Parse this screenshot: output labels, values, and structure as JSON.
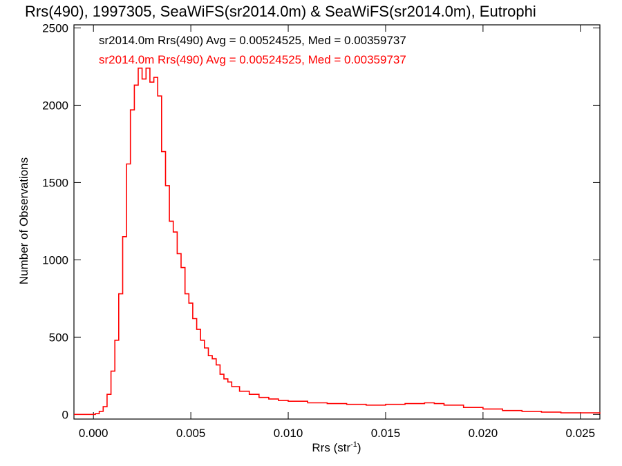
{
  "chart_data": {
    "type": "line",
    "title": "Rrs(490), 1997305, SeaWiFS(sr2014.0m) & SeaWiFS(sr2014.0m), Eutrophi",
    "xlabel": "Rrs (str",
    "xlabel_sup": "-1",
    "xlabel_close": ")",
    "ylabel": "Number of Observations",
    "xlim": [
      -0.001,
      0.026
    ],
    "ylim": [
      -30,
      2520
    ],
    "x_ticks": [
      0.0,
      0.005,
      0.01,
      0.015,
      0.02,
      0.025
    ],
    "x_tick_labels": [
      "0.000",
      "0.005",
      "0.010",
      "0.015",
      "0.020",
      "0.025"
    ],
    "y_ticks": [
      0,
      500,
      1000,
      1500,
      2000,
      2500
    ],
    "y_tick_labels": [
      "0",
      "500",
      "1000",
      "1500",
      "2000",
      "2500"
    ],
    "legend": [
      {
        "text": "sr2014.0m Rrs(490) Avg = 0.00524525, Med = 0.00359737",
        "color": "#000000"
      },
      {
        "text": "sr2014.0m Rrs(490) Avg = 0.00524525, Med = 0.00359737",
        "color": "#ff0000"
      }
    ],
    "series": [
      {
        "color": "#ff0000",
        "x": [
          -0.001,
          0.0001,
          0.0003,
          0.0005,
          0.0007,
          0.0009,
          0.0011,
          0.0013,
          0.0015,
          0.0017,
          0.0019,
          0.0021,
          0.0023,
          0.0025,
          0.0027,
          0.0029,
          0.0031,
          0.0033,
          0.0035,
          0.0037,
          0.0039,
          0.0041,
          0.0043,
          0.0045,
          0.0047,
          0.0049,
          0.0051,
          0.0053,
          0.0055,
          0.0057,
          0.0059,
          0.0061,
          0.0063,
          0.0065,
          0.0067,
          0.0069,
          0.0071,
          0.0075,
          0.008,
          0.0085,
          0.009,
          0.0095,
          0.01,
          0.011,
          0.012,
          0.013,
          0.014,
          0.015,
          0.016,
          0.017,
          0.0175,
          0.018,
          0.019,
          0.02,
          0.021,
          0.022,
          0.023,
          0.024,
          0.025,
          0.026
        ],
        "values": [
          0,
          5,
          20,
          50,
          130,
          280,
          480,
          780,
          1150,
          1620,
          1970,
          2130,
          2240,
          2170,
          2240,
          2150,
          2180,
          2060,
          1700,
          1480,
          1250,
          1180,
          1040,
          950,
          780,
          720,
          620,
          550,
          480,
          430,
          380,
          360,
          320,
          260,
          230,
          210,
          180,
          150,
          130,
          110,
          100,
          90,
          85,
          75,
          70,
          65,
          60,
          65,
          70,
          75,
          70,
          60,
          45,
          35,
          25,
          20,
          15,
          10,
          10,
          5
        ]
      }
    ],
    "grid": false
  }
}
